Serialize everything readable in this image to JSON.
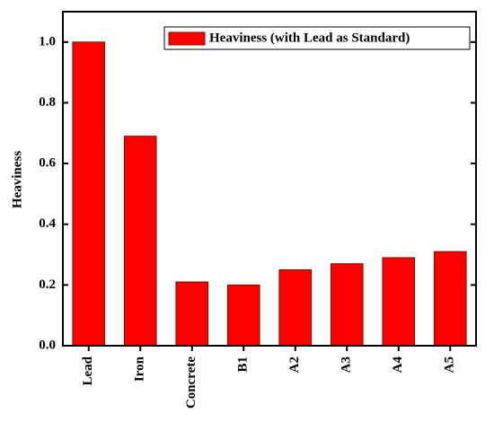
{
  "chart_data": {
    "type": "bar",
    "ylabel": "Heaviness",
    "categories": [
      "Lead",
      "Iron",
      "Concrete",
      "B1",
      "A2",
      "A3",
      "A4",
      "A5"
    ],
    "series": [
      {
        "name": "Heaviness (with Lead as Standard)",
        "color": "#ff0000",
        "values": [
          1.0,
          0.69,
          0.21,
          0.2,
          0.25,
          0.27,
          0.29,
          0.31
        ]
      }
    ],
    "ylim": [
      0,
      1.1
    ],
    "yticks": [
      {
        "value": 0,
        "label": "0.0"
      },
      0.2,
      0.4,
      0.6,
      0.8,
      {
        "value": 1,
        "label": "1.0"
      }
    ],
    "legend": "upper right"
  }
}
